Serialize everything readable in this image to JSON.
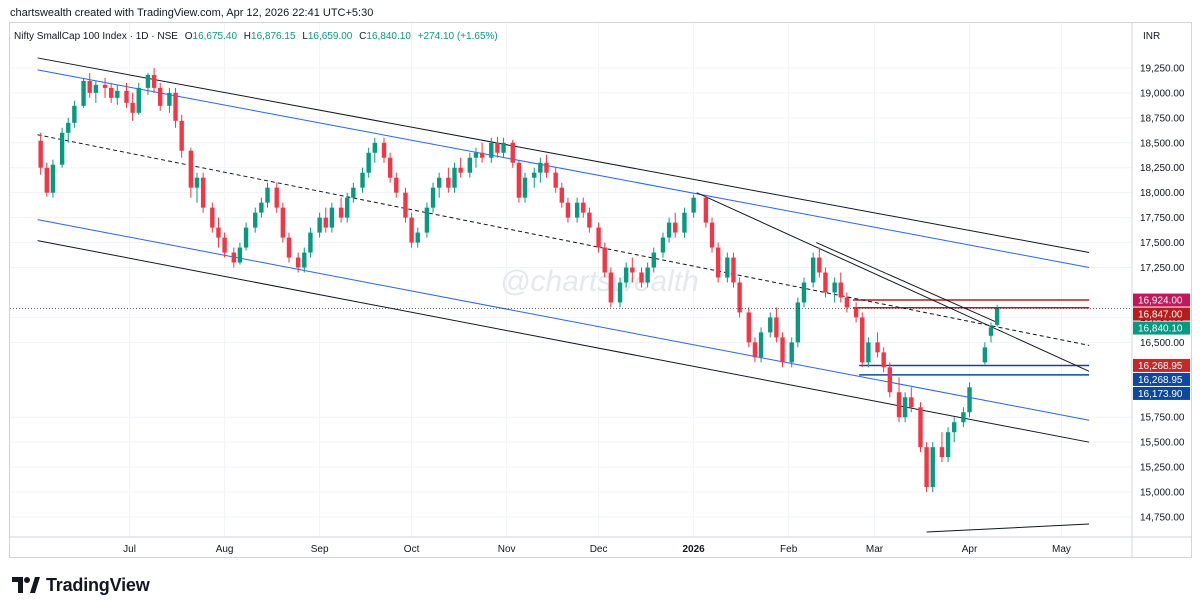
{
  "header": {
    "attribution": "chartswealth created with TradingView.com, Apr 12, 2026 22:41 UTC+5:30"
  },
  "footer": {
    "brand": "TradingView"
  },
  "watermark": "@chartswealth",
  "colors": {
    "up": "#089981",
    "down": "#f23645",
    "channel_outer": "#131722",
    "channel_inner": "#2962ff",
    "red_zone": "#b71c1c",
    "blue_zone": "#0d47a1",
    "grid": "#f0f3fa"
  },
  "chart_data": {
    "type": "candlestick",
    "legend": {
      "symbol": "Nifty SmallCap 100 Index · 1D · NSE",
      "o_label": "O",
      "open": "16,675.40",
      "h_label": "H",
      "high": "16,876.15",
      "l_label": "L",
      "low": "16,659.00",
      "c_label": "C",
      "close": "16,840.10",
      "change": "+274.10 (+1.65%)"
    },
    "currency": "INR",
    "ylim": [
      14550,
      19700
    ],
    "y_ticks": [
      "19,250.00",
      "19,000.00",
      "18,750.00",
      "18,500.00",
      "18,250.00",
      "18,000.00",
      "17,750.00",
      "17,500.00",
      "17,250.00",
      "16,750.00",
      "16,500.00",
      "15,750.00",
      "15,500.00",
      "15,250.00",
      "15,000.00",
      "14,750.00"
    ],
    "x_ticks": [
      {
        "date": "2025-07-01",
        "label": "Jul"
      },
      {
        "date": "2025-08-01",
        "label": "Aug"
      },
      {
        "date": "2025-09-01",
        "label": "Sep"
      },
      {
        "date": "2025-10-01",
        "label": "Oct"
      },
      {
        "date": "2025-11-01",
        "label": "Nov"
      },
      {
        "date": "2025-12-01",
        "label": "Dec"
      },
      {
        "date": "2026-01-01",
        "label": "2026"
      },
      {
        "date": "2026-02-01",
        "label": "Feb"
      },
      {
        "date": "2026-03-01",
        "label": "Mar"
      },
      {
        "date": "2026-04-01",
        "label": "Apr"
      },
      {
        "date": "2026-05-01",
        "label": "May"
      }
    ],
    "price_labels": [
      {
        "value": 16924,
        "text": "16,924.00",
        "color": "#c2185b"
      },
      {
        "value": 16847,
        "text": "16,847.00",
        "color": "#b71c1c"
      },
      {
        "value": 16840.1,
        "text": "16,840.10",
        "color": "#089981"
      },
      {
        "value": 16268.95,
        "text": "16,268.95",
        "color": "#c62828"
      },
      {
        "value": 16268.95,
        "text": "16,268.95",
        "color": "#0d47a1"
      },
      {
        "value": 16173.9,
        "text": "16,173.90",
        "color": "#0d47a1"
      }
    ],
    "zones": [
      {
        "from": "2026-02-22",
        "to": "2026-05-10",
        "top": 16924,
        "bottom": 16847,
        "color": "#b71c1c"
      },
      {
        "from": "2026-02-24",
        "to": "2026-05-10",
        "top": 16268.95,
        "bottom": 16173.9,
        "color": "#0d47a1"
      }
    ],
    "lines": [
      {
        "name": "channel-upper-outer",
        "x1": "2025-06-01",
        "y1": 19350,
        "x2": "2026-05-10",
        "y2": 17400,
        "color": "#131722",
        "dash": false
      },
      {
        "name": "channel-upper-inner",
        "x1": "2025-06-01",
        "y1": 19230,
        "x2": "2026-05-10",
        "y2": 17250,
        "color": "#2962ff",
        "dash": false
      },
      {
        "name": "channel-mid",
        "x1": "2025-06-01",
        "y1": 18580,
        "x2": "2026-05-10",
        "y2": 16470,
        "color": "#131722",
        "dash": true
      },
      {
        "name": "channel-lower-inner",
        "x1": "2025-06-01",
        "y1": 17730,
        "x2": "2026-05-10",
        "y2": 15720,
        "color": "#2962ff",
        "dash": false
      },
      {
        "name": "channel-lower-outer",
        "x1": "2025-06-01",
        "y1": 17520,
        "x2": "2026-05-10",
        "y2": 15500,
        "color": "#131722",
        "dash": false
      },
      {
        "name": "trendline-from-jan",
        "x1": "2026-01-02",
        "y1": 18000,
        "x2": "2026-05-10",
        "y2": 16210,
        "color": "#131722",
        "dash": false
      },
      {
        "name": "trendline-from-feb",
        "x1": "2026-02-10",
        "y1": 17500,
        "x2": "2026-04-10",
        "y2": 16700,
        "color": "#131722",
        "dash": false
      },
      {
        "name": "support-rising",
        "x1": "2026-03-18",
        "y1": 14600,
        "x2": "2026-05-10",
        "y2": 14680,
        "color": "#131722",
        "dash": false
      }
    ],
    "last_price_line": 16840.1,
    "candles": [
      [
        "2025-06-02",
        18520,
        18600,
        18180,
        18250
      ],
      [
        "2025-06-04",
        18250,
        18300,
        17960,
        18000
      ],
      [
        "2025-06-06",
        18000,
        18330,
        17950,
        18280
      ],
      [
        "2025-06-09",
        18280,
        18650,
        18250,
        18600
      ],
      [
        "2025-06-11",
        18600,
        18750,
        18500,
        18700
      ],
      [
        "2025-06-13",
        18700,
        18920,
        18650,
        18870
      ],
      [
        "2025-06-16",
        18870,
        19150,
        18850,
        19120
      ],
      [
        "2025-06-18",
        19120,
        19200,
        18950,
        19000
      ],
      [
        "2025-06-20",
        19000,
        19120,
        18900,
        19080
      ],
      [
        "2025-06-23",
        19080,
        19150,
        18950,
        19050
      ],
      [
        "2025-06-25",
        19050,
        19100,
        18900,
        18950
      ],
      [
        "2025-06-27",
        18950,
        19080,
        18880,
        19020
      ],
      [
        "2025-06-30",
        19020,
        19100,
        18850,
        18900
      ],
      [
        "2025-07-02",
        18900,
        19000,
        18720,
        18800
      ],
      [
        "2025-07-04",
        18800,
        19100,
        18780,
        19050
      ],
      [
        "2025-07-07",
        19050,
        19200,
        18980,
        19180
      ],
      [
        "2025-07-09",
        19180,
        19250,
        19000,
        19050
      ],
      [
        "2025-07-11",
        19050,
        19100,
        18820,
        18870
      ],
      [
        "2025-07-14",
        18870,
        19050,
        18800,
        19000
      ],
      [
        "2025-07-16",
        19000,
        19050,
        18650,
        18720
      ],
      [
        "2025-07-18",
        18720,
        18780,
        18350,
        18420
      ],
      [
        "2025-07-21",
        18420,
        18450,
        17950,
        18050
      ],
      [
        "2025-07-23",
        18050,
        18200,
        17900,
        18150
      ],
      [
        "2025-07-25",
        18150,
        18200,
        17800,
        17850
      ],
      [
        "2025-07-28",
        17850,
        17900,
        17600,
        17650
      ],
      [
        "2025-07-30",
        17650,
        17750,
        17450,
        17550
      ],
      [
        "2025-08-01",
        17550,
        17600,
        17350,
        17400
      ],
      [
        "2025-08-04",
        17400,
        17450,
        17250,
        17300
      ],
      [
        "2025-08-06",
        17300,
        17500,
        17280,
        17450
      ],
      [
        "2025-08-08",
        17450,
        17700,
        17420,
        17650
      ],
      [
        "2025-08-11",
        17650,
        17850,
        17600,
        17800
      ],
      [
        "2025-08-13",
        17800,
        17950,
        17750,
        17900
      ],
      [
        "2025-08-15",
        17900,
        18100,
        17850,
        18050
      ],
      [
        "2025-08-18",
        18050,
        18100,
        17800,
        17850
      ],
      [
        "2025-08-20",
        17850,
        17900,
        17500,
        17550
      ],
      [
        "2025-08-22",
        17550,
        17600,
        17300,
        17350
      ],
      [
        "2025-08-25",
        17350,
        17400,
        17200,
        17250
      ],
      [
        "2025-08-27",
        17250,
        17450,
        17200,
        17400
      ],
      [
        "2025-08-29",
        17400,
        17650,
        17350,
        17600
      ],
      [
        "2025-09-01",
        17600,
        17800,
        17550,
        17750
      ],
      [
        "2025-09-03",
        17750,
        17850,
        17600,
        17650
      ],
      [
        "2025-09-05",
        17650,
        17900,
        17600,
        17850
      ],
      [
        "2025-09-08",
        17850,
        17950,
        17700,
        17750
      ],
      [
        "2025-09-10",
        17750,
        18000,
        17700,
        17950
      ],
      [
        "2025-09-12",
        17950,
        18100,
        17900,
        18050
      ],
      [
        "2025-09-15",
        18050,
        18250,
        18000,
        18200
      ],
      [
        "2025-09-17",
        18200,
        18450,
        18150,
        18400
      ],
      [
        "2025-09-19",
        18400,
        18550,
        18300,
        18500
      ],
      [
        "2025-09-22",
        18500,
        18550,
        18300,
        18350
      ],
      [
        "2025-09-24",
        18350,
        18400,
        18100,
        18150
      ],
      [
        "2025-09-26",
        18150,
        18200,
        17950,
        18000
      ],
      [
        "2025-09-29",
        18000,
        18050,
        17700,
        17750
      ],
      [
        "2025-10-01",
        17750,
        17800,
        17450,
        17500
      ],
      [
        "2025-10-03",
        17500,
        17650,
        17450,
        17600
      ],
      [
        "2025-10-06",
        17600,
        17900,
        17550,
        17850
      ],
      [
        "2025-10-08",
        17850,
        18100,
        17800,
        18050
      ],
      [
        "2025-10-10",
        18050,
        18200,
        17950,
        18150
      ],
      [
        "2025-10-13",
        18150,
        18250,
        18000,
        18050
      ],
      [
        "2025-10-15",
        18050,
        18300,
        18000,
        18250
      ],
      [
        "2025-10-17",
        18250,
        18350,
        18150,
        18200
      ],
      [
        "2025-10-20",
        18200,
        18400,
        18150,
        18350
      ],
      [
        "2025-10-22",
        18350,
        18450,
        18250,
        18400
      ],
      [
        "2025-10-24",
        18400,
        18500,
        18300,
        18350
      ],
      [
        "2025-10-27",
        18350,
        18550,
        18300,
        18500
      ],
      [
        "2025-10-29",
        18500,
        18560,
        18350,
        18400
      ],
      [
        "2025-10-31",
        18400,
        18550,
        18350,
        18500
      ],
      [
        "2025-11-03",
        18500,
        18530,
        18250,
        18300
      ],
      [
        "2025-11-05",
        18300,
        18320,
        17900,
        17950
      ],
      [
        "2025-11-07",
        17950,
        18200,
        17900,
        18150
      ],
      [
        "2025-11-10",
        18150,
        18250,
        18050,
        18200
      ],
      [
        "2025-11-12",
        18200,
        18350,
        18100,
        18300
      ],
      [
        "2025-11-14",
        18300,
        18380,
        18150,
        18200
      ],
      [
        "2025-11-17",
        18200,
        18250,
        18000,
        18050
      ],
      [
        "2025-11-19",
        18050,
        18100,
        17850,
        17900
      ],
      [
        "2025-11-21",
        17900,
        17950,
        17700,
        17750
      ],
      [
        "2025-11-24",
        17750,
        17950,
        17700,
        17900
      ],
      [
        "2025-11-26",
        17900,
        17950,
        17750,
        17800
      ],
      [
        "2025-11-28",
        17800,
        17850,
        17600,
        17650
      ],
      [
        "2025-12-01",
        17650,
        17700,
        17400,
        17450
      ],
      [
        "2025-12-03",
        17450,
        17500,
        17150,
        17200
      ],
      [
        "2025-12-05",
        17200,
        17250,
        16850,
        16900
      ],
      [
        "2025-12-08",
        16900,
        17150,
        16850,
        17100
      ],
      [
        "2025-12-10",
        17100,
        17300,
        17050,
        17250
      ],
      [
        "2025-12-12",
        17250,
        17350,
        17100,
        17200
      ],
      [
        "2025-12-15",
        17200,
        17250,
        17050,
        17100
      ],
      [
        "2025-12-17",
        17100,
        17300,
        17050,
        17250
      ],
      [
        "2025-12-19",
        17250,
        17450,
        17200,
        17400
      ],
      [
        "2025-12-22",
        17400,
        17600,
        17350,
        17550
      ],
      [
        "2025-12-24",
        17550,
        17750,
        17500,
        17700
      ],
      [
        "2025-12-26",
        17700,
        17800,
        17550,
        17600
      ],
      [
        "2025-12-29",
        17600,
        17850,
        17550,
        17800
      ],
      [
        "2026-01-01",
        17800,
        17980,
        17750,
        17950
      ],
      [
        "2026-01-05",
        17950,
        17980,
        17650,
        17700
      ],
      [
        "2026-01-07",
        17700,
        17750,
        17400,
        17450
      ],
      [
        "2026-01-09",
        17450,
        17500,
        17100,
        17150
      ],
      [
        "2026-01-12",
        17150,
        17400,
        17100,
        17350
      ],
      [
        "2026-01-14",
        17350,
        17400,
        17050,
        17100
      ],
      [
        "2026-01-16",
        17100,
        17150,
        16750,
        16800
      ],
      [
        "2026-01-19",
        16800,
        16850,
        16450,
        16500
      ],
      [
        "2026-01-21",
        16500,
        16550,
        16300,
        16350
      ],
      [
        "2026-01-23",
        16350,
        16650,
        16300,
        16600
      ],
      [
        "2026-01-26",
        16600,
        16800,
        16550,
        16750
      ],
      [
        "2026-01-28",
        16750,
        16850,
        16500,
        16550
      ],
      [
        "2026-01-30",
        16550,
        16600,
        16250,
        16300
      ],
      [
        "2026-02-02",
        16300,
        16550,
        16250,
        16500
      ],
      [
        "2026-02-04",
        16500,
        16950,
        16450,
        16900
      ],
      [
        "2026-02-06",
        16900,
        17150,
        16850,
        17100
      ],
      [
        "2026-02-09",
        17100,
        17400,
        17050,
        17350
      ],
      [
        "2026-02-11",
        17350,
        17450,
        17150,
        17200
      ],
      [
        "2026-02-13",
        17200,
        17250,
        16950,
        17000
      ],
      [
        "2026-02-16",
        17000,
        17150,
        16900,
        17100
      ],
      [
        "2026-02-18",
        17100,
        17200,
        16900,
        16950
      ],
      [
        "2026-02-20",
        16950,
        17000,
        16800,
        16850
      ],
      [
        "2026-02-23",
        16850,
        16900,
        16700,
        16750
      ],
      [
        "2026-02-25",
        16750,
        16800,
        16250,
        16300
      ],
      [
        "2026-02-27",
        16300,
        16550,
        16250,
        16500
      ],
      [
        "2026-03-02",
        16500,
        16600,
        16350,
        16400
      ],
      [
        "2026-03-04",
        16400,
        16450,
        16200,
        16250
      ],
      [
        "2026-03-06",
        16250,
        16300,
        15950,
        16000
      ],
      [
        "2026-03-09",
        16000,
        16150,
        15700,
        15750
      ],
      [
        "2026-03-11",
        15750,
        16000,
        15700,
        15950
      ],
      [
        "2026-03-13",
        15950,
        16050,
        15800,
        15850
      ],
      [
        "2026-03-16",
        15850,
        15900,
        15400,
        15450
      ],
      [
        "2026-03-18",
        15450,
        15500,
        15000,
        15050
      ],
      [
        "2026-03-20",
        15050,
        15500,
        15000,
        15450
      ],
      [
        "2026-03-23",
        15450,
        15600,
        15300,
        15350
      ],
      [
        "2026-03-25",
        15350,
        15650,
        15300,
        15600
      ],
      [
        "2026-03-27",
        15600,
        15750,
        15500,
        15700
      ],
      [
        "2026-03-30",
        15700,
        15850,
        15650,
        15800
      ],
      [
        "2026-04-01",
        15800,
        16100,
        15750,
        16050
      ],
      [
        "2026-04-06",
        16300,
        16500,
        16280,
        16450
      ],
      [
        "2026-04-08",
        16566,
        16700,
        16500,
        16650
      ],
      [
        "2026-04-10",
        16675.4,
        16876.15,
        16659,
        16840.1
      ]
    ]
  }
}
